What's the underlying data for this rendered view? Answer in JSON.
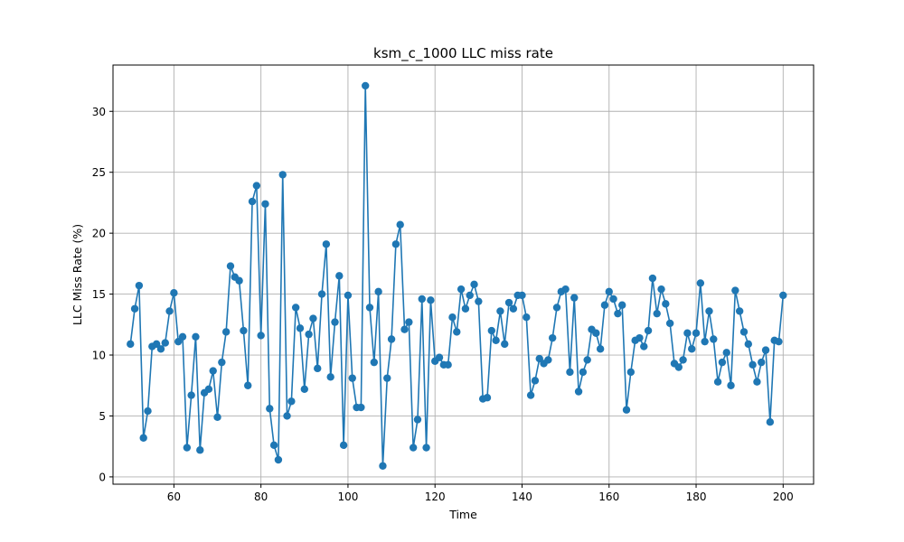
{
  "chart_data": {
    "type": "line",
    "title": "ksm_c_1000 LLC miss rate",
    "xlabel": "Time",
    "ylabel": "LLC Miss Rate (%)",
    "xlim": [
      46,
      207
    ],
    "ylim": [
      -0.6,
      33.8
    ],
    "xticks": [
      60,
      80,
      100,
      120,
      140,
      160,
      180,
      200
    ],
    "yticks": [
      0,
      5,
      10,
      15,
      20,
      25,
      30
    ],
    "grid": true,
    "series": [
      {
        "color": "#1f77b4",
        "marker": "circle",
        "x": [
          50,
          51,
          52,
          53,
          54,
          55,
          56,
          57,
          58,
          59,
          60,
          61,
          62,
          63,
          64,
          65,
          66,
          67,
          68,
          69,
          70,
          71,
          72,
          73,
          74,
          75,
          76,
          77,
          78,
          79,
          80,
          81,
          82,
          83,
          84,
          85,
          86,
          87,
          88,
          89,
          90,
          91,
          92,
          93,
          94,
          95,
          96,
          97,
          98,
          99,
          100,
          101,
          102,
          103,
          104,
          105,
          106,
          107,
          108,
          109,
          110,
          111,
          112,
          113,
          114,
          115,
          116,
          117,
          118,
          119,
          120,
          121,
          122,
          123,
          124,
          125,
          126,
          127,
          128,
          129,
          130,
          131,
          132,
          133,
          134,
          135,
          136,
          137,
          138,
          139,
          140,
          141,
          142,
          143,
          144,
          145,
          146,
          147,
          148,
          149,
          150,
          151,
          152,
          153,
          154,
          155,
          156,
          157,
          158,
          159,
          160,
          161,
          162,
          163,
          164,
          165,
          166,
          167,
          168,
          169,
          170,
          171,
          172,
          173,
          174,
          175,
          176,
          177,
          178,
          179,
          180,
          181,
          182,
          183,
          184,
          185,
          186,
          187,
          188,
          189,
          190,
          191,
          192,
          193,
          194,
          195,
          196,
          197,
          198,
          199,
          200
        ],
        "y": [
          10.9,
          13.8,
          15.7,
          3.2,
          5.4,
          10.7,
          10.9,
          10.5,
          11.0,
          13.6,
          15.1,
          11.1,
          11.5,
          2.4,
          6.7,
          11.5,
          2.2,
          6.9,
          7.2,
          8.7,
          4.9,
          9.4,
          11.9,
          17.3,
          16.4,
          16.1,
          12.0,
          7.5,
          22.6,
          23.9,
          11.6,
          22.4,
          5.6,
          2.6,
          1.4,
          24.8,
          5.0,
          6.2,
          13.9,
          12.2,
          7.2,
          11.7,
          13.0,
          8.9,
          15.0,
          19.1,
          8.2,
          12.7,
          16.5,
          2.6,
          14.9,
          8.1,
          5.7,
          5.7,
          32.1,
          13.9,
          9.4,
          15.2,
          0.9,
          8.1,
          11.3,
          19.1,
          20.7,
          12.1,
          12.7,
          2.4,
          4.7,
          14.6,
          2.4,
          14.5,
          9.5,
          9.8,
          9.2,
          9.2,
          13.1,
          11.9,
          15.4,
          13.8,
          14.9,
          15.8,
          14.4,
          6.4,
          6.5,
          12.0,
          11.2,
          13.6,
          10.9,
          14.3,
          13.8,
          14.9,
          14.9,
          13.1,
          6.7,
          7.9,
          9.7,
          9.3,
          9.6,
          11.4,
          13.9,
          15.2,
          15.4,
          8.6,
          14.7,
          7.0,
          8.6,
          9.6,
          12.1,
          11.8,
          10.5,
          14.1,
          15.2,
          14.6,
          13.4,
          14.1,
          5.5,
          8.6,
          11.2,
          11.4,
          10.7,
          12.0,
          16.3,
          13.4,
          15.4,
          14.2,
          12.6,
          9.3,
          9.0,
          9.6,
          11.8,
          10.5,
          11.8,
          15.9,
          11.1,
          13.6,
          11.3,
          7.8,
          9.4,
          10.2,
          7.5,
          15.3,
          13.6,
          11.9,
          10.9,
          9.2,
          7.8,
          9.4,
          10.4,
          4.5,
          11.2,
          11.1,
          14.9
        ]
      }
    ]
  }
}
